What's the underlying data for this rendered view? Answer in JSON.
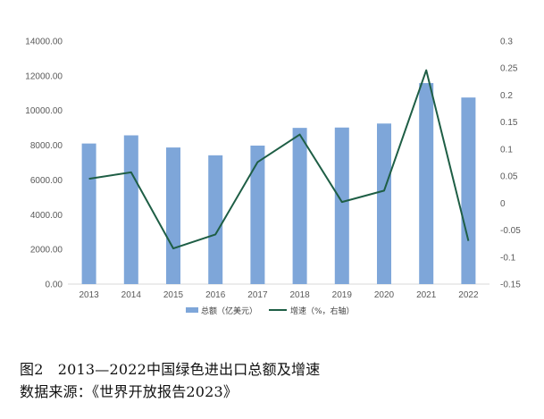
{
  "chart_data": {
    "type": "bar",
    "categories": [
      "2013",
      "2014",
      "2015",
      "2016",
      "2017",
      "2018",
      "2019",
      "2020",
      "2021",
      "2022"
    ],
    "series": [
      {
        "name": "总额（亿美元）",
        "type": "bar",
        "axis": "left",
        "color": "#7ea6d9",
        "values": [
          8100,
          8570,
          7870,
          7420,
          7980,
          9000,
          9020,
          9250,
          11580,
          10750
        ]
      },
      {
        "name": "增速（%，右轴）",
        "type": "line",
        "axis": "right",
        "color": "#1e5e45",
        "values": [
          0.045,
          0.057,
          -0.084,
          -0.058,
          0.076,
          0.127,
          0.002,
          0.023,
          0.246,
          -0.07
        ]
      }
    ],
    "y_left": {
      "ylim": [
        0,
        14000
      ],
      "ticks": [
        "0.00",
        "2000.00",
        "4000.00",
        "6000.00",
        "8000.00",
        "10000.00",
        "12000.00",
        "14000.00"
      ]
    },
    "y_right": {
      "ylim": [
        -0.15,
        0.3
      ],
      "ticks": [
        "-0.15",
        "-0.1",
        "-0.05",
        "0",
        "0.05",
        "0.1",
        "0.15",
        "0.2",
        "0.25",
        "0.3"
      ]
    },
    "legend_position": "bottom",
    "grid": false
  },
  "caption": {
    "title": "图2　2013—2022中国绿色进出口总额及增速",
    "source": "数据来源：《世界开放报告2023》"
  }
}
